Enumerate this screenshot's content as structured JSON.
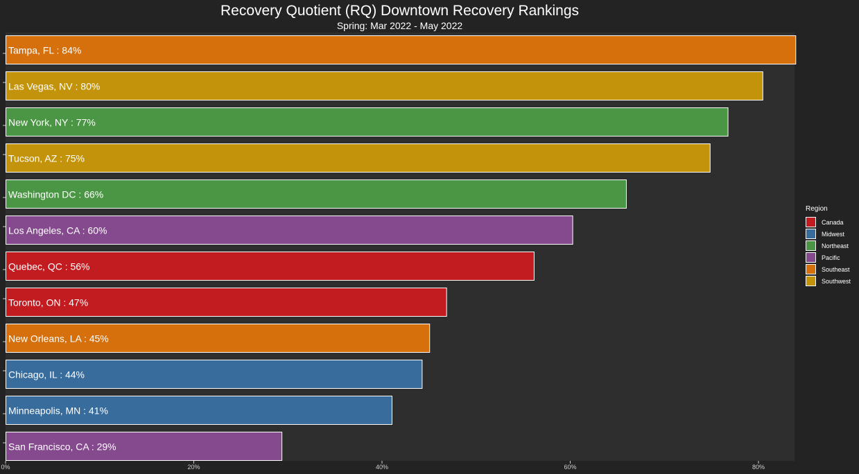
{
  "chart_data": {
    "type": "bar",
    "orientation": "horizontal",
    "title": "Recovery Quotient (RQ) Downtown Recovery Rankings",
    "subtitle": "Spring: Mar 2022 - May 2022",
    "xlabel": "",
    "ylabel": "",
    "xlim": [
      0,
      0.84
    ],
    "x_ticks": [
      "0%",
      "20%",
      "40%",
      "60%",
      "80%"
    ],
    "x_tick_values": [
      0,
      0.2,
      0.4,
      0.6,
      0.8
    ],
    "grid": false,
    "legend_position": "right",
    "categories": [
      "Tampa, FL : 84%",
      "Las Vegas, NV : 80%",
      "New York, NY : 77%",
      "Tucson, AZ : 75%",
      "Washington DC : 66%",
      "Los Angeles, CA : 60%",
      "Quebec, QC : 56%",
      "Toronto, ON : 47%",
      "New Orleans, LA : 45%",
      "Chicago, IL : 44%",
      "Minneapolis, MN : 41%",
      "San Francisco, CA : 29%"
    ],
    "values": [
      0.84,
      0.805,
      0.768,
      0.749,
      0.66,
      0.603,
      0.562,
      0.469,
      0.451,
      0.443,
      0.411,
      0.294
    ],
    "regions": [
      "Southeast",
      "Southwest",
      "Northeast",
      "Southwest",
      "Northeast",
      "Pacific",
      "Canada",
      "Canada",
      "Southeast",
      "Midwest",
      "Midwest",
      "Pacific"
    ],
    "legend": {
      "title": "Region",
      "entries": [
        {
          "name": "Canada",
          "color": "#c21c21"
        },
        {
          "name": "Midwest",
          "color": "#376c9d"
        },
        {
          "name": "Northeast",
          "color": "#4a9645"
        },
        {
          "name": "Pacific",
          "color": "#854a8e"
        },
        {
          "name": "Southeast",
          "color": "#d6700c"
        },
        {
          "name": "Southwest",
          "color": "#c3940b"
        }
      ]
    }
  },
  "colors": {
    "background": "#232323",
    "panel": "#2e2e2e",
    "bar_outline": "#ffffff",
    "tick_text": "#cfcfcf"
  }
}
